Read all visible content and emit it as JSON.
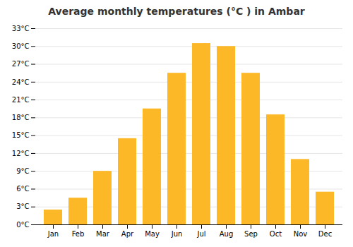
{
  "chart_data": {
    "type": "bar",
    "title": "Average monthly temperatures (°C ) in Ambar",
    "categories": [
      "Jan",
      "Feb",
      "Mar",
      "Apr",
      "May",
      "Jun",
      "Jul",
      "Aug",
      "Sep",
      "Oct",
      "Nov",
      "Dec"
    ],
    "values": [
      2.5,
      4.5,
      9.0,
      14.5,
      19.5,
      25.5,
      30.5,
      30.0,
      25.5,
      18.5,
      11.0,
      5.5
    ],
    "color": "#FDB827",
    "ylim": [
      0,
      33
    ],
    "yticks": [
      {
        "value": 0,
        "label": "0°C"
      },
      {
        "value": 3,
        "label": "3°C"
      },
      {
        "value": 6,
        "label": "6°C"
      },
      {
        "value": 9,
        "label": "9°C"
      },
      {
        "value": 12,
        "label": "12°C"
      },
      {
        "value": 15,
        "label": "15°C"
      },
      {
        "value": 18,
        "label": "18°C"
      },
      {
        "value": 21,
        "label": "21°C"
      },
      {
        "value": 24,
        "label": "24°C"
      },
      {
        "value": 27,
        "label": "27°C"
      },
      {
        "value": 30,
        "label": "30°C"
      },
      {
        "value": 33,
        "label": "33°C"
      }
    ],
    "grid": true
  }
}
